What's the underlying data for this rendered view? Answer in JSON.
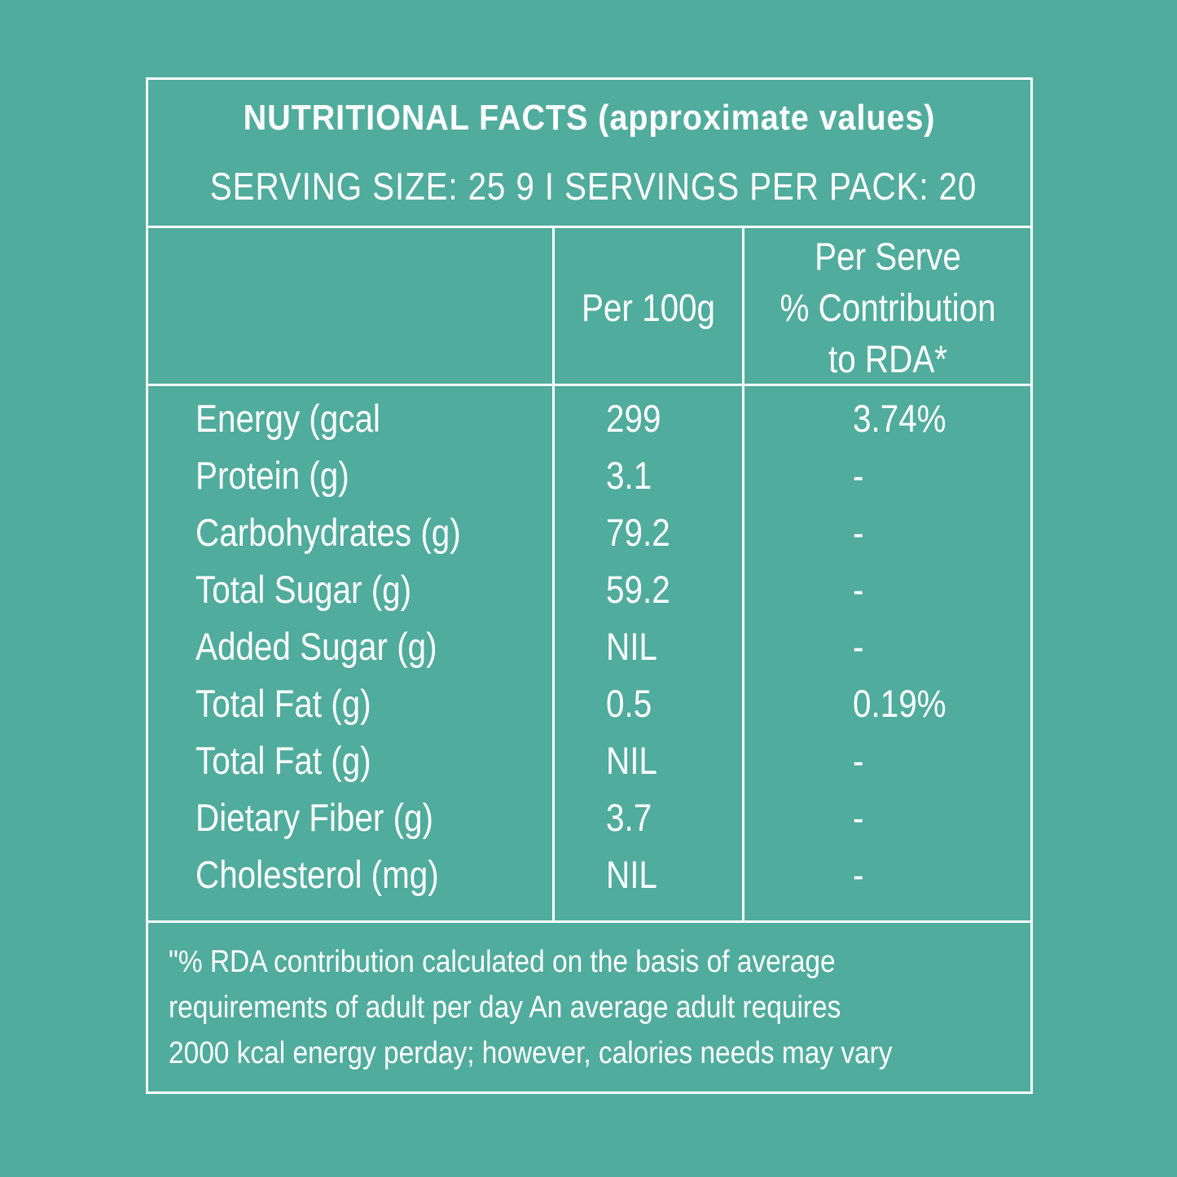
{
  "header": {
    "title": "NUTRITIONAL FACTS (approximate values)",
    "subtitle": "SERVING SIZE: 25 9 I SERVINGS PER PACK: 20"
  },
  "columns": {
    "per100g": "Per 100g",
    "rda_lines": [
      "Per Serve",
      "% Contribution",
      "to RDA*"
    ]
  },
  "rows": [
    {
      "name": "Energy (gcal",
      "per100g": "299",
      "rda": "3.74%"
    },
    {
      "name": "Protein (g)",
      "per100g": "3.1",
      "rda": "-"
    },
    {
      "name": "Carbohydrates (g)",
      "per100g": "79.2",
      "rda": "-"
    },
    {
      "name": "Total Sugar (g)",
      "per100g": "59.2",
      "rda": "-"
    },
    {
      "name": "Added Sugar (g)",
      "per100g": "NIL",
      "rda": "-"
    },
    {
      "name": "Total Fat (g)",
      "per100g": "0.5",
      "rda": "0.19%"
    },
    {
      "name": "Total Fat (g)",
      "per100g": "NIL",
      "rda": "-"
    },
    {
      "name": "Dietary Fiber (g)",
      "per100g": "3.7",
      "rda": "-"
    },
    {
      "name": "Cholesterol (mg)",
      "per100g": "NIL",
      "rda": "-"
    }
  ],
  "footnote": [
    "\"% RDA contribution calculated on the basis of average",
    "requirements of adult per day An average adult requires",
    "2000 kcal energy perday; however, calories needs may vary"
  ],
  "colors": {
    "background": "#50ac9c",
    "text": "#ffffff",
    "lines": "#ffffff"
  }
}
